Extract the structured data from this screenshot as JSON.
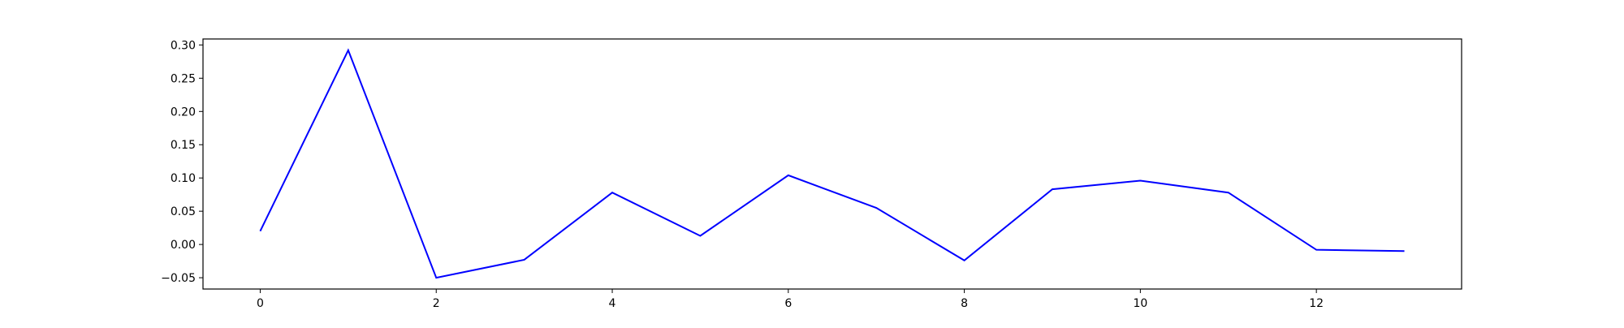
{
  "chart_data": {
    "type": "line",
    "title": "",
    "xlabel": "",
    "ylabel": "",
    "x": [
      0,
      1,
      2,
      3,
      4,
      5,
      6,
      7,
      8,
      9,
      10,
      11,
      12,
      13
    ],
    "series": [
      {
        "color": "#0000ff",
        "values": [
          0.02,
          0.292,
          -0.05,
          -0.023,
          0.078,
          0.013,
          0.104,
          0.055,
          -0.024,
          0.083,
          0.096,
          0.078,
          -0.008,
          -0.01
        ]
      }
    ],
    "xlim": [
      -0.65,
      13.65
    ],
    "ylim": [
      -0.067,
      0.309
    ],
    "xticks": [
      0,
      2,
      4,
      6,
      8,
      10,
      12
    ],
    "yticks": [
      -0.05,
      0.0,
      0.05,
      0.1,
      0.15,
      0.2,
      0.25,
      0.3
    ],
    "xtick_labels": [
      "0",
      "2",
      "4",
      "6",
      "8",
      "10",
      "12"
    ],
    "ytick_labels": [
      "−0.05",
      "0.00",
      "0.05",
      "0.10",
      "0.15",
      "0.20",
      "0.25",
      "0.30"
    ],
    "grid": false,
    "legend": "none"
  }
}
